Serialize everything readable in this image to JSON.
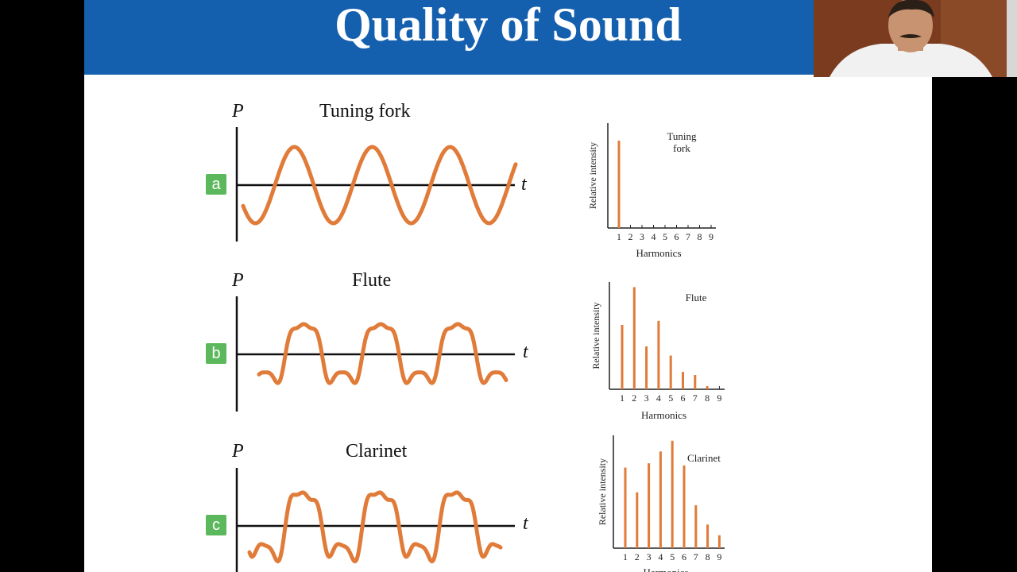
{
  "title": "Quality of Sound",
  "colors": {
    "accent": "#1560ae",
    "wave": "#e07b39",
    "badge": "#5cb85c"
  },
  "waveforms": [
    {
      "id": "a",
      "badge": "a",
      "name": "Tuning fork",
      "y_label": "P",
      "x_label": "t"
    },
    {
      "id": "b",
      "badge": "b",
      "name": "Flute",
      "y_label": "P",
      "x_label": "t"
    },
    {
      "id": "c",
      "badge": "c",
      "name": "Clarinet",
      "y_label": "P",
      "x_label": "t"
    }
  ],
  "chart_data": [
    {
      "type": "bar",
      "title": [
        "Tuning",
        "fork"
      ],
      "xlabel": "Harmonics",
      "ylabel": "Relative intensity",
      "categories": [
        "1",
        "2",
        "3",
        "4",
        "5",
        "6",
        "7",
        "8",
        "9"
      ],
      "values": [
        1.0,
        0,
        0,
        0,
        0,
        0,
        0,
        0,
        0
      ],
      "ylim": [
        0,
        1.2
      ]
    },
    {
      "type": "bar",
      "title": [
        "Flute"
      ],
      "xlabel": "Harmonics",
      "ylabel": "Relative intensity",
      "categories": [
        "1",
        "2",
        "3",
        "4",
        "5",
        "6",
        "7",
        "8",
        "9"
      ],
      "values": [
        0.63,
        1.0,
        0.42,
        0.67,
        0.33,
        0.17,
        0.14,
        0.03,
        0
      ],
      "ylim": [
        0,
        1.05
      ]
    },
    {
      "type": "bar",
      "title": [
        "Clarinet"
      ],
      "xlabel": "Harmonics",
      "ylabel": "Relative intensity",
      "categories": [
        "1",
        "2",
        "3",
        "4",
        "5",
        "6",
        "7",
        "8",
        "9"
      ],
      "values": [
        0.75,
        0.52,
        0.79,
        0.9,
        1.0,
        0.77,
        0.4,
        0.22,
        0.12
      ],
      "ylim": [
        0,
        1.05
      ]
    }
  ]
}
